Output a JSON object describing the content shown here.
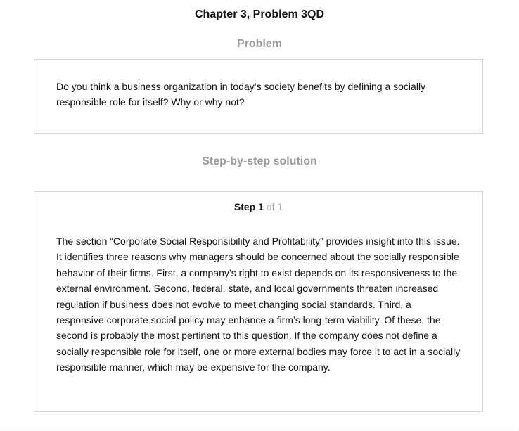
{
  "header": {
    "title": "Chapter 3, Problem 3QD"
  },
  "problem": {
    "heading": "Problem",
    "text": "Do you think a business organization in today’s society benefits by defining a socially responsible role for itself?  Why or why not?"
  },
  "solution": {
    "heading": "Step-by-step solution",
    "step_word": "Step 1",
    "step_total": "of 1",
    "text": "The section “Corporate Social Responsibility and Profitability” provides insight into this issue. It identifies three reasons why managers should be concerned about the socially responsible behavior of their firms. First, a company’s right to exist depends on its responsiveness to the external environment. Second, federal, state, and local governments threaten increased regulation if business does not evolve to meet changing social standards. Third, a responsive corporate social policy may enhance a firm’s long-term viability. Of these, the second is probably the most pertinent to this question. If the company does not define a socially responsible role for itself, one or more external bodies may force it to act in a socially responsible manner, which may be expensive for the company."
  }
}
